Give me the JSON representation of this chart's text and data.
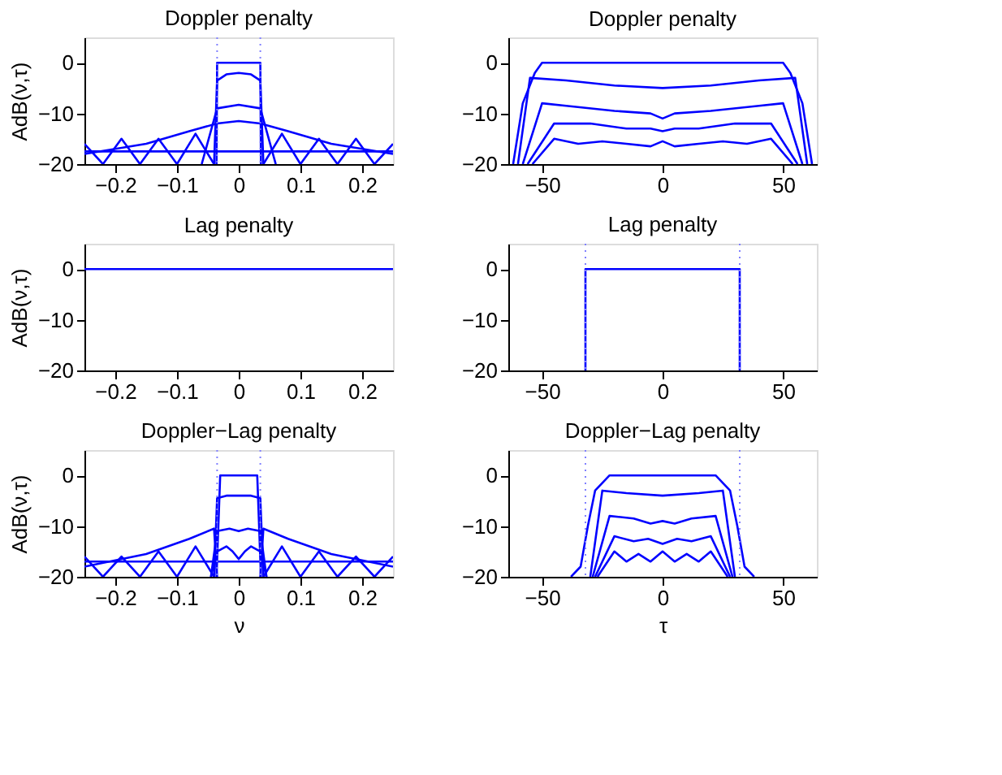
{
  "chart_data": [
    {
      "type": "line",
      "title": "Doppler penalty",
      "ylabel": "AdB(ν,τ)",
      "xlim": [
        -0.25,
        0.25
      ],
      "xticks": [
        -0.2,
        -0.1,
        0,
        0.1,
        0.2
      ],
      "ylim": [
        -20,
        5
      ],
      "yticks": [
        -20,
        -10,
        0
      ],
      "grid": false,
      "legend": false,
      "series": [
        {
          "color": "#0000ff",
          "x": [
            -0.036,
            -0.035,
            0,
            0.035,
            0.036
          ],
          "values": [
            -20,
            0,
            0,
            0,
            -20
          ]
        },
        {
          "color": "#0000ff",
          "x": [
            -0.04,
            -0.035,
            -0.02,
            0,
            0.02,
            0.035,
            0.04
          ],
          "values": [
            -20,
            -3.5,
            -2.3,
            -2,
            -2.3,
            -3.5,
            -20
          ]
        },
        {
          "color": "#0000ff",
          "x": [
            -0.06,
            -0.035,
            0,
            0.035,
            0.06
          ],
          "values": [
            -20,
            -9,
            -8.3,
            -9,
            -20
          ]
        },
        {
          "color": "#0000ff",
          "x": [
            -0.25,
            -0.15,
            -0.08,
            -0.035,
            0,
            0.035,
            0.08,
            0.15,
            0.25
          ],
          "values": [
            -18,
            -16,
            -13.5,
            -12,
            -11.5,
            -12,
            -13.5,
            -16,
            -18
          ]
        },
        {
          "color": "#0000ff",
          "x": [
            -0.25,
            0.25
          ],
          "values": [
            -17.5,
            -17.5
          ]
        },
        {
          "color": "#0000ff",
          "x": [
            -0.25,
            -0.22,
            -0.19,
            -0.16,
            -0.13,
            -0.1,
            -0.07,
            -0.04
          ],
          "values": [
            -16,
            -20,
            -15,
            -20,
            -15,
            -20,
            -14,
            -20
          ]
        },
        {
          "color": "#0000ff",
          "x": [
            0.04,
            0.07,
            0.1,
            0.13,
            0.16,
            0.19,
            0.22,
            0.25
          ],
          "values": [
            -20,
            -14,
            -20,
            -15,
            -20,
            -15,
            -20,
            -16
          ]
        }
      ],
      "ref_lines": [
        {
          "axis": "x",
          "value": -0.035,
          "color": "#8080ff",
          "line_style": "dotted"
        },
        {
          "axis": "x",
          "value": 0.035,
          "color": "#8080ff",
          "line_style": "dotted"
        }
      ]
    },
    {
      "type": "line",
      "title": "Doppler penalty",
      "xlim": [
        -64,
        64
      ],
      "xticks": [
        -50,
        0,
        50
      ],
      "ylim": [
        -20,
        5
      ],
      "yticks": [
        -20,
        -10,
        0
      ],
      "grid": false,
      "legend": false,
      "series": [
        {
          "color": "#0000ff",
          "x": [
            -62,
            -58,
            -53,
            -50,
            50,
            53,
            58,
            62
          ],
          "values": [
            -20,
            -8,
            -2,
            0,
            0,
            -2,
            -8,
            -20
          ]
        },
        {
          "color": "#0000ff",
          "x": [
            -60,
            -55,
            -40,
            -20,
            0,
            20,
            40,
            55,
            60
          ],
          "values": [
            -20,
            -3,
            -3.5,
            -4.5,
            -5,
            -4.5,
            -3.5,
            -3,
            -20
          ]
        },
        {
          "color": "#0000ff",
          "x": [
            -58,
            -50,
            -40,
            -20,
            -5,
            0,
            5,
            20,
            40,
            50,
            58
          ],
          "values": [
            -20,
            -8,
            -8.5,
            -9.5,
            -10,
            -11,
            -10,
            -9.5,
            -8.5,
            -8,
            -20
          ]
        },
        {
          "color": "#0000ff",
          "x": [
            -56,
            -45,
            -30,
            -15,
            -5,
            0,
            5,
            15,
            30,
            45,
            56
          ],
          "values": [
            -20,
            -12,
            -12,
            -13,
            -13,
            -13.5,
            -13,
            -13,
            -12,
            -12,
            -20
          ]
        },
        {
          "color": "#0000ff",
          "x": [
            -54,
            -45,
            -35,
            -25,
            -15,
            -5,
            0,
            5,
            15,
            25,
            35,
            45,
            54
          ],
          "values": [
            -20,
            -15,
            -16,
            -15.5,
            -16,
            -16.5,
            -15.5,
            -16.5,
            -16,
            -15.5,
            -16,
            -15,
            -20
          ]
        }
      ]
    },
    {
      "type": "line",
      "title": "Lag penalty",
      "ylabel": "AdB(ν,τ)",
      "xlim": [
        -0.25,
        0.25
      ],
      "xticks": [
        -0.2,
        -0.1,
        0,
        0.1,
        0.2
      ],
      "ylim": [
        -20,
        5
      ],
      "yticks": [
        -20,
        -10,
        0
      ],
      "grid": false,
      "legend": false,
      "series": [
        {
          "color": "#0000ff",
          "x": [
            -0.25,
            0.25
          ],
          "values": [
            0,
            0
          ]
        }
      ]
    },
    {
      "type": "line",
      "title": "Lag penalty",
      "xlim": [
        -64,
        64
      ],
      "xticks": [
        -50,
        0,
        50
      ],
      "ylim": [
        -20,
        5
      ],
      "yticks": [
        -20,
        -10,
        0
      ],
      "grid": false,
      "legend": false,
      "series": [
        {
          "color": "#0000ff",
          "x": [
            -32,
            -32,
            32,
            32
          ],
          "values": [
            -20,
            0,
            0,
            -20
          ]
        }
      ],
      "ref_lines": [
        {
          "axis": "x",
          "value": -32,
          "color": "#8080ff",
          "line_style": "dotted"
        },
        {
          "axis": "x",
          "value": 32,
          "color": "#8080ff",
          "line_style": "dotted"
        }
      ]
    },
    {
      "type": "line",
      "title": "Doppler−Lag penalty",
      "ylabel": "AdB(ν,τ)",
      "xlabel": "ν",
      "xlim": [
        -0.25,
        0.25
      ],
      "xticks": [
        -0.2,
        -0.1,
        0,
        0.1,
        0.2
      ],
      "ylim": [
        -20,
        5
      ],
      "yticks": [
        -20,
        -10,
        0
      ],
      "grid": false,
      "legend": false,
      "series": [
        {
          "color": "#0000ff",
          "x": [
            -0.036,
            -0.03,
            0,
            0.03,
            0.036
          ],
          "values": [
            -20,
            0,
            0,
            0,
            -20
          ]
        },
        {
          "color": "#0000ff",
          "x": [
            -0.04,
            -0.035,
            -0.02,
            0,
            0.02,
            0.035,
            0.04
          ],
          "values": [
            -20,
            -4.5,
            -4,
            -4,
            -4,
            -4.5,
            -20
          ]
        },
        {
          "color": "#0000ff",
          "x": [
            -0.045,
            -0.035,
            -0.015,
            0,
            0.015,
            0.035,
            0.045
          ],
          "values": [
            -20,
            -11,
            -10.5,
            -11,
            -10.5,
            -11,
            -20
          ]
        },
        {
          "color": "#0000ff",
          "x": [
            -0.045,
            -0.035,
            -0.02,
            -0.01,
            0,
            0.01,
            0.02,
            0.035,
            0.045
          ],
          "values": [
            -20,
            -15,
            -14,
            -15,
            -16.5,
            -15,
            -14,
            -15,
            -20
          ]
        },
        {
          "color": "#0000ff",
          "x": [
            -0.25,
            -0.15,
            -0.08,
            -0.04,
            -0.035
          ],
          "values": [
            -18,
            -15.5,
            -12.5,
            -10.5,
            -20
          ]
        },
        {
          "color": "#0000ff",
          "x": [
            0.035,
            0.04,
            0.08,
            0.15,
            0.25
          ],
          "values": [
            -20,
            -10.5,
            -12.5,
            -15.5,
            -18
          ]
        },
        {
          "color": "#0000ff",
          "x": [
            -0.25,
            0.25
          ],
          "values": [
            -17,
            -17
          ]
        },
        {
          "color": "#0000ff",
          "x": [
            -0.25,
            -0.22,
            -0.19,
            -0.16,
            -0.13,
            -0.1,
            -0.07,
            -0.04
          ],
          "values": [
            -16,
            -20,
            -16,
            -20,
            -15,
            -20,
            -14,
            -20
          ]
        },
        {
          "color": "#0000ff",
          "x": [
            0.04,
            0.07,
            0.1,
            0.13,
            0.16,
            0.19,
            0.22,
            0.25
          ],
          "values": [
            -20,
            -14,
            -20,
            -15,
            -20,
            -16,
            -20,
            -16
          ]
        }
      ],
      "ref_lines": [
        {
          "axis": "x",
          "value": -0.035,
          "color": "#8080ff",
          "line_style": "dotted"
        },
        {
          "axis": "x",
          "value": 0.035,
          "color": "#8080ff",
          "line_style": "dotted"
        }
      ]
    },
    {
      "type": "line",
      "title": "Doppler−Lag penalty",
      "xlabel": "τ",
      "xlim": [
        -64,
        64
      ],
      "xticks": [
        -50,
        0,
        50
      ],
      "ylim": [
        -20,
        5
      ],
      "yticks": [
        -20,
        -10,
        0
      ],
      "grid": false,
      "legend": false,
      "series": [
        {
          "color": "#0000ff",
          "x": [
            -38,
            -34,
            -31,
            -28,
            -22,
            22,
            28,
            31,
            34,
            38
          ],
          "values": [
            -20,
            -18,
            -10,
            -3,
            0,
            0,
            -3,
            -10,
            -18,
            -20
          ]
        },
        {
          "color": "#0000ff",
          "x": [
            -30,
            -25,
            -15,
            0,
            15,
            25,
            30
          ],
          "values": [
            -20,
            -3,
            -3.5,
            -4,
            -3.5,
            -3,
            -20
          ]
        },
        {
          "color": "#0000ff",
          "x": [
            -29,
            -22,
            -12,
            -5,
            0,
            5,
            12,
            22,
            29
          ],
          "values": [
            -20,
            -8,
            -8.5,
            -9.5,
            -9,
            -9.5,
            -8.5,
            -8,
            -20
          ]
        },
        {
          "color": "#0000ff",
          "x": [
            -28,
            -20,
            -12,
            -6,
            0,
            6,
            12,
            20,
            28
          ],
          "values": [
            -20,
            -12,
            -13,
            -12.5,
            -13.5,
            -12.5,
            -13,
            -12,
            -20
          ]
        },
        {
          "color": "#0000ff",
          "x": [
            -27,
            -20,
            -15,
            -10,
            -5,
            0,
            5,
            10,
            15,
            20,
            27
          ],
          "values": [
            -20,
            -15,
            -17,
            -15.5,
            -17,
            -15,
            -17,
            -15.5,
            -17,
            -15,
            -20
          ]
        }
      ],
      "ref_lines": [
        {
          "axis": "x",
          "value": -32,
          "color": "#8080ff",
          "line_style": "dotted"
        },
        {
          "axis": "x",
          "value": 32,
          "color": "#8080ff",
          "line_style": "dotted"
        }
      ]
    }
  ]
}
